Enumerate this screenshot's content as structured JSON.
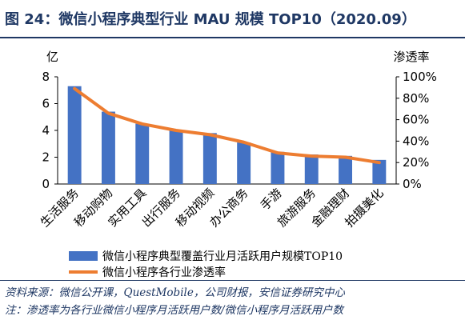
{
  "header": {
    "title": "图 24：微信小程序典型行业 MAU 规模 TOP10（2020.09）"
  },
  "footer": {
    "source": "资料来源：微信公开课，QuestMobile，公司财报，安信证券研究中心",
    "note": "注：渗透率为各行业微信小程序月活跃用户数/微信小程序月活跃用户数"
  },
  "colors": {
    "title": "#1f3864",
    "bar": "#4472c4",
    "line": "#ed7d31",
    "axis": "#000000"
  },
  "chart_data": {
    "type": "bar",
    "categories": [
      "生活服务",
      "移动购物",
      "实用工具",
      "出行服务",
      "移动视频",
      "办公商务",
      "手游",
      "旅游服务",
      "金融理财",
      "拍摄美化"
    ],
    "left_axis_label": "亿",
    "right_axis_label": "渗透率",
    "y_left": {
      "min": 0,
      "max": 8,
      "ticks": [
        0,
        2,
        4,
        6,
        8
      ]
    },
    "y_right": {
      "min": 0,
      "max": 100,
      "ticks": [
        "0%",
        "20%",
        "40%",
        "60%",
        "80%",
        "100%"
      ]
    },
    "series": [
      {
        "name": "微信小程序典型覆盖行业月活跃用户规模TOP10",
        "type": "bar",
        "axis": "left",
        "values": [
          7.3,
          5.4,
          4.5,
          4.0,
          3.8,
          3.1,
          2.4,
          2.2,
          2.1,
          1.8
        ]
      },
      {
        "name": "微信小程序各行业渗透率",
        "type": "line",
        "axis": "right",
        "values": [
          89,
          66,
          56,
          50,
          46,
          39,
          29,
          26,
          25,
          20
        ]
      }
    ],
    "legend_position": "bottom"
  }
}
